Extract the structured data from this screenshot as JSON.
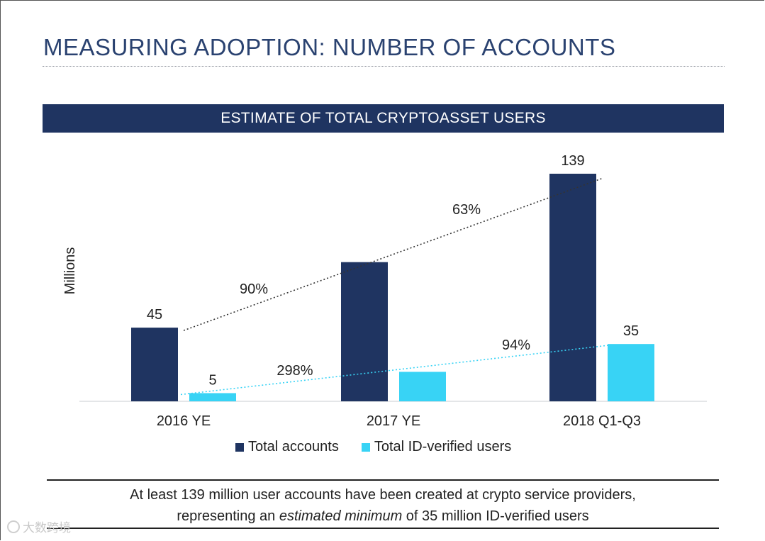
{
  "page": {
    "title": "MEASURING ADOPTION: NUMBER OF ACCOUNTS",
    "banner": "ESTIMATE OF TOTAL CRYPTOASSET USERS"
  },
  "colors": {
    "navy": "#1f3461",
    "cyan": "#38d3f5",
    "title": "#2a4270"
  },
  "chart_data": {
    "type": "bar",
    "title": "ESTIMATE OF TOTAL CRYPTOASSET USERS",
    "ylabel": "Millions",
    "xlabel": "",
    "categories": [
      "2016 YE",
      "2017 YE",
      "2018 Q1-Q3"
    ],
    "series": [
      {
        "name": "Total accounts",
        "color": "#1f3461",
        "values": [
          45,
          85,
          139
        ],
        "labels": [
          "45",
          "",
          "139"
        ]
      },
      {
        "name": "Total ID-verified users",
        "color": "#38d3f5",
        "values": [
          5,
          18,
          35
        ],
        "labels": [
          "5",
          "",
          "35"
        ]
      }
    ],
    "growth_annotations": [
      {
        "series": "Total accounts",
        "from": "2016 YE",
        "to": "2017 YE",
        "label": "90%"
      },
      {
        "series": "Total accounts",
        "from": "2017 YE",
        "to": "2018 Q1-Q3",
        "label": "63%"
      },
      {
        "series": "Total ID-verified users",
        "from": "2016 YE",
        "to": "2017 YE",
        "label": "298%"
      },
      {
        "series": "Total ID-verified users",
        "from": "2017 YE",
        "to": "2018 Q1-Q3",
        "label": "94%"
      }
    ],
    "ylim": [
      0,
      150
    ],
    "grid": false,
    "legend": "bottom"
  },
  "legend": {
    "items": [
      {
        "label": "Total accounts",
        "color": "#1f3461"
      },
      {
        "label": "Total ID-verified users",
        "color": "#38d3f5"
      }
    ]
  },
  "footer": {
    "line1": "At least 139 million user accounts have been created at crypto service providers,",
    "line2_before": "representing an ",
    "line2_italic": "estimated minimum",
    "line2_after": " of 35 million ID-verified users"
  },
  "watermark": {
    "text": "大数跨境"
  }
}
